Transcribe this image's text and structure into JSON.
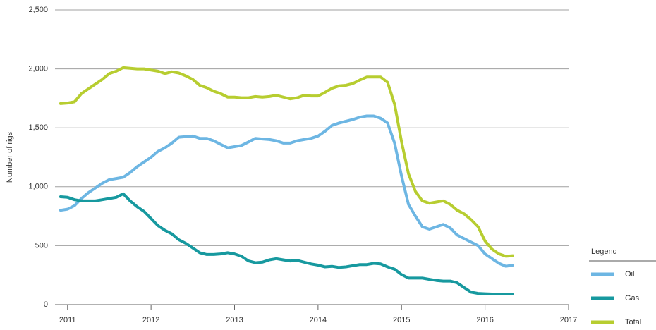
{
  "chart_data": {
    "type": "line",
    "y_label": "Number of rigs",
    "legend_title": "Legend",
    "legend": "bottom-right",
    "grid": true,
    "xlim": [
      2010.85,
      2017.0
    ],
    "xticks": [
      2011,
      2012,
      2013,
      2014,
      2015,
      2016,
      2017
    ],
    "ylim": [
      0,
      2500
    ],
    "yticks": [
      0,
      500,
      {
        "value": 1000,
        "label": "1,000"
      },
      {
        "value": 1500,
        "label": "1,500"
      },
      {
        "value": 2000,
        "label": "2,000"
      },
      {
        "value": 2500,
        "label": "2,500"
      }
    ],
    "x": [
      2010.917,
      2011.0,
      2011.083,
      2011.167,
      2011.25,
      2011.333,
      2011.417,
      2011.5,
      2011.583,
      2011.667,
      2011.75,
      2011.833,
      2011.917,
      2012.0,
      2012.083,
      2012.167,
      2012.25,
      2012.333,
      2012.417,
      2012.5,
      2012.583,
      2012.667,
      2012.75,
      2012.833,
      2012.917,
      2013.0,
      2013.083,
      2013.167,
      2013.25,
      2013.333,
      2013.417,
      2013.5,
      2013.583,
      2013.667,
      2013.75,
      2013.833,
      2013.917,
      2014.0,
      2014.083,
      2014.167,
      2014.25,
      2014.333,
      2014.417,
      2014.5,
      2014.583,
      2014.667,
      2014.75,
      2014.833,
      2014.917,
      2015.0,
      2015.083,
      2015.167,
      2015.25,
      2015.333,
      2015.417,
      2015.5,
      2015.583,
      2015.667,
      2015.75,
      2015.833,
      2015.917,
      2016.0,
      2016.083,
      2016.167,
      2016.25,
      2016.333
    ],
    "series": [
      {
        "name": "Oil",
        "color": "#6db6e3",
        "values": [
          800,
          810,
          840,
          900,
          950,
          990,
          1030,
          1060,
          1070,
          1080,
          1120,
          1170,
          1210,
          1250,
          1300,
          1330,
          1370,
          1420,
          1425,
          1430,
          1410,
          1410,
          1390,
          1360,
          1330,
          1340,
          1350,
          1380,
          1410,
          1405,
          1400,
          1390,
          1370,
          1370,
          1390,
          1400,
          1410,
          1430,
          1470,
          1520,
          1540,
          1555,
          1570,
          1590,
          1600,
          1600,
          1580,
          1540,
          1370,
          1090,
          850,
          750,
          660,
          640,
          660,
          680,
          650,
          590,
          560,
          530,
          500,
          430,
          390,
          350,
          325,
          335
        ]
      },
      {
        "name": "Gas",
        "color": "#17999f",
        "values": [
          915,
          910,
          890,
          880,
          880,
          880,
          890,
          900,
          910,
          940,
          880,
          830,
          790,
          730,
          670,
          630,
          600,
          550,
          520,
          480,
          440,
          425,
          425,
          430,
          440,
          430,
          410,
          370,
          355,
          360,
          380,
          390,
          380,
          370,
          375,
          360,
          345,
          335,
          320,
          325,
          315,
          320,
          330,
          340,
          340,
          350,
          345,
          320,
          300,
          255,
          225,
          225,
          225,
          215,
          205,
          200,
          200,
          185,
          145,
          105,
          95,
          92,
          90,
          90,
          90,
          90
        ]
      },
      {
        "name": "Total",
        "color": "#b7cd30",
        "values": [
          1705,
          1710,
          1720,
          1790,
          1830,
          1870,
          1910,
          1960,
          1980,
          2010,
          2005,
          2000,
          2000,
          1990,
          1980,
          1960,
          1975,
          1965,
          1940,
          1910,
          1860,
          1840,
          1810,
          1790,
          1760,
          1760,
          1755,
          1755,
          1765,
          1760,
          1765,
          1775,
          1760,
          1745,
          1755,
          1775,
          1770,
          1770,
          1800,
          1835,
          1855,
          1860,
          1875,
          1905,
          1930,
          1930,
          1930,
          1885,
          1700,
          1380,
          1110,
          960,
          880,
          860,
          870,
          880,
          850,
          800,
          770,
          720,
          660,
          540,
          470,
          430,
          410,
          415
        ]
      }
    ]
  }
}
